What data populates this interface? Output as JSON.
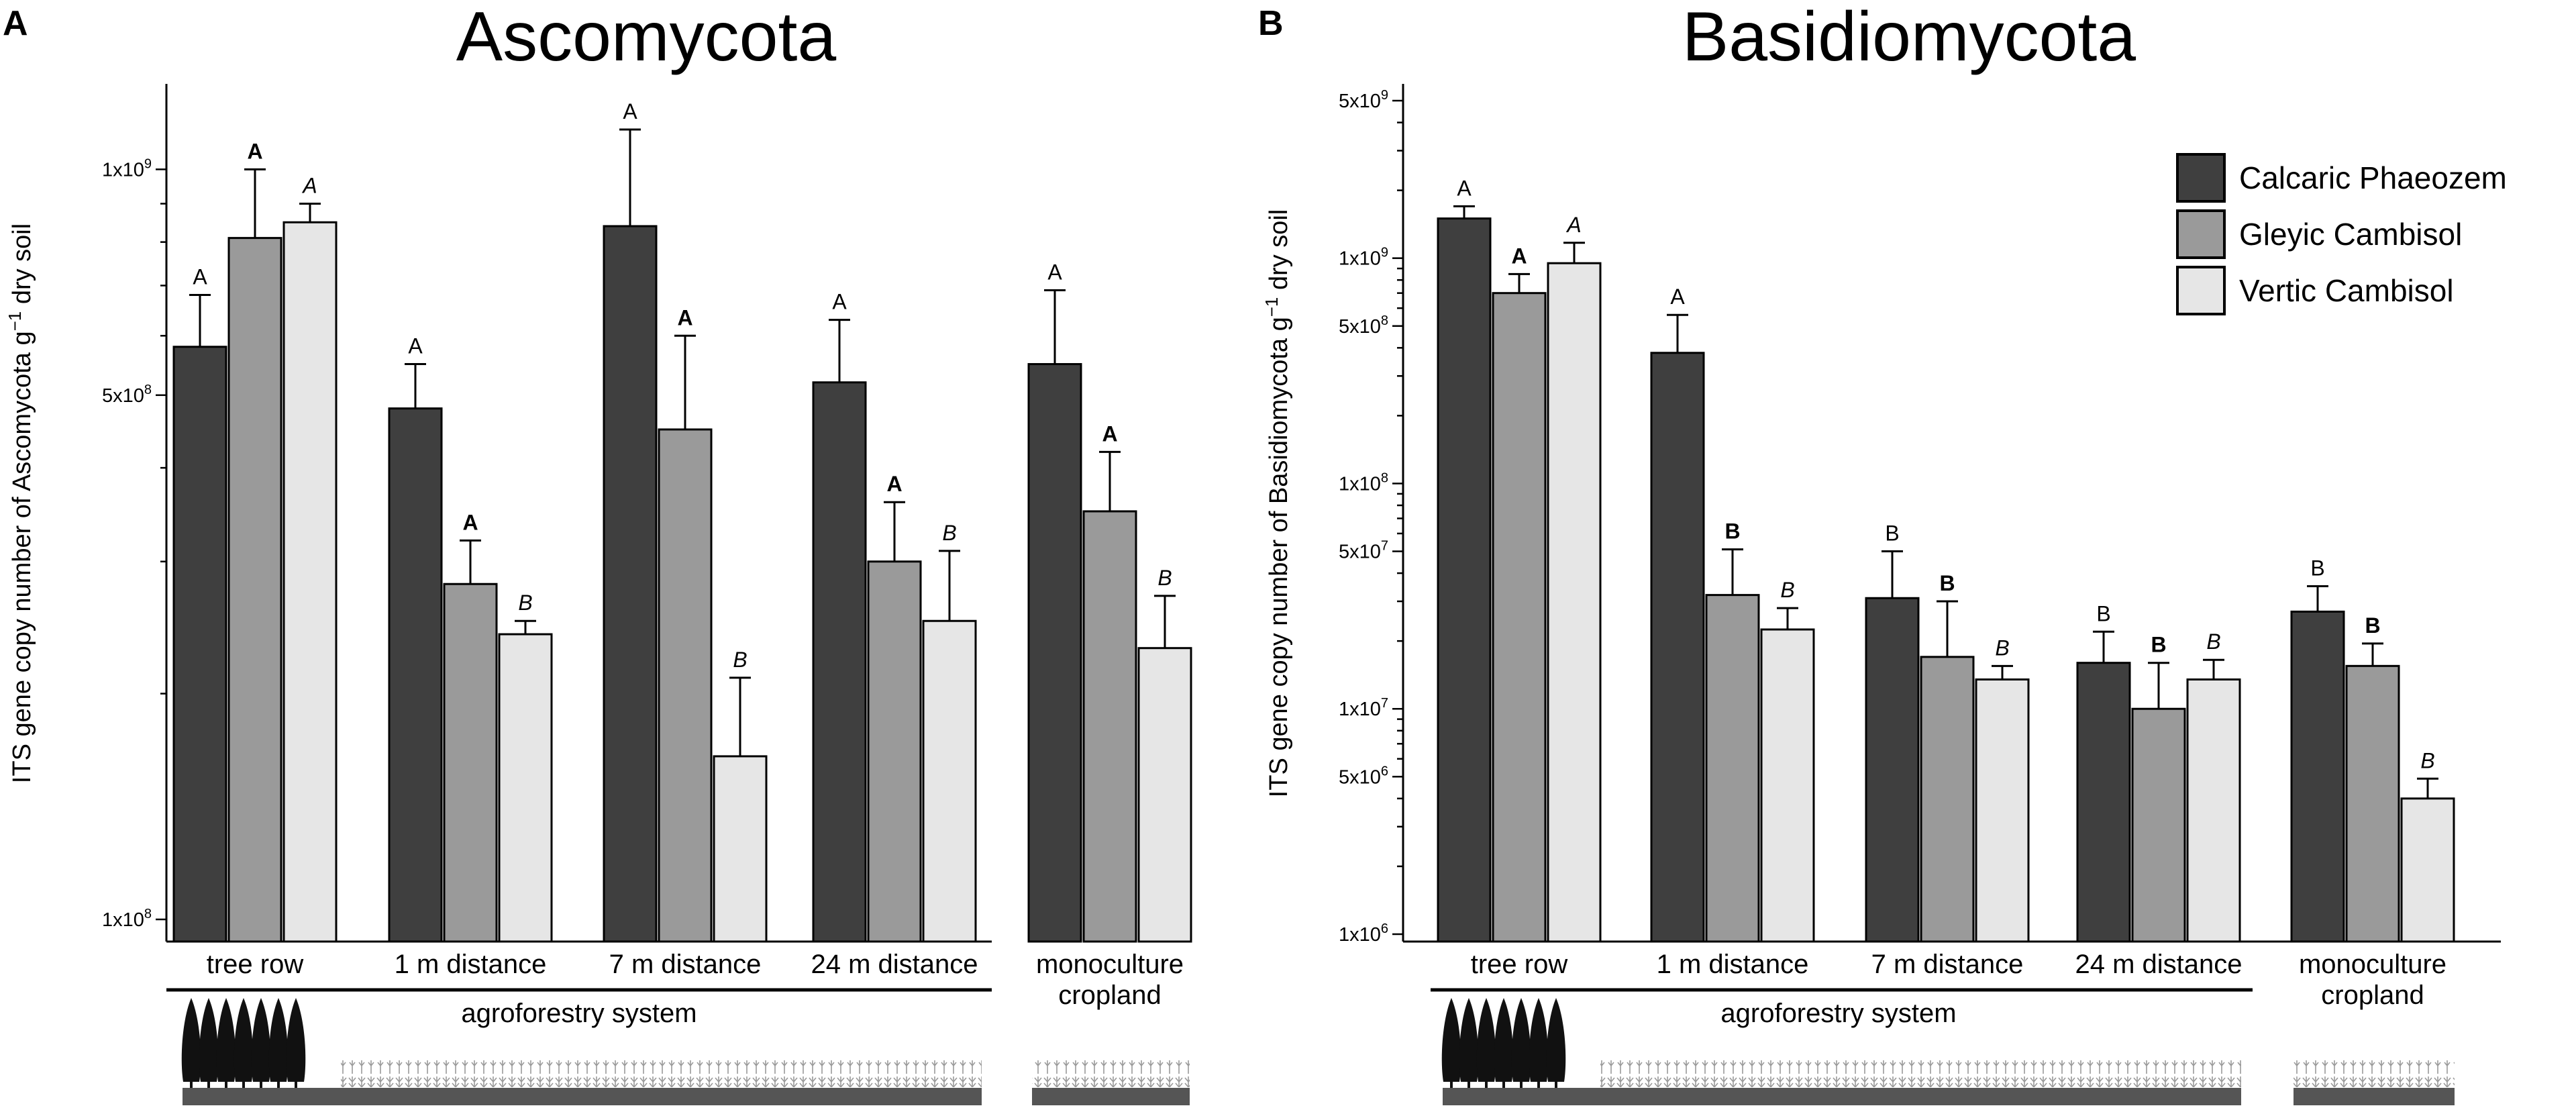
{
  "colors": {
    "Calcaric Phaeozem": "#3f3f3f",
    "Gleyic Cambisol": "#9a9a9a",
    "Vertic Cambisol": "#e6e6e6"
  },
  "chart_data": [
    {
      "panel": "A",
      "title": "Ascomycota",
      "type": "bar",
      "yscale": "log",
      "ylim": [
        100000000,
        1300000000
      ],
      "ylabel_parts": [
        "ITS gene copy number of Ascomycota g",
        "−1",
        " dry soil"
      ],
      "yticks": [
        {
          "value": 100000000,
          "label": "1x10",
          "exp": "8"
        },
        {
          "value": 500000000,
          "label": "5x10",
          "exp": "8"
        },
        {
          "value": 1000000000,
          "label": "1x10",
          "exp": "9"
        }
      ],
      "categories": [
        [
          "tree row"
        ],
        [
          "1 m distance"
        ],
        [
          "7 m distance"
        ],
        [
          "24 m distance"
        ],
        [
          "monoculture",
          "cropland"
        ]
      ],
      "group_label": "agroforestry system",
      "series": [
        {
          "name": "Calcaric Phaeozem",
          "values": [
            580000000,
            480000000,
            840000000,
            520000000,
            550000000
          ],
          "errors": [
            680000000,
            550000000,
            1130000000,
            630000000,
            690000000
          ],
          "letters": [
            "A",
            "A",
            "A",
            "A",
            "A"
          ],
          "style": "normal"
        },
        {
          "name": "Gleyic Cambisol",
          "values": [
            810000000,
            280000000,
            450000000,
            300000000,
            350000000
          ],
          "errors": [
            1000000000,
            320000000,
            600000000,
            360000000,
            420000000
          ],
          "letters": [
            "A",
            "A",
            "A",
            "A",
            "A"
          ],
          "style": "bold"
        },
        {
          "name": "Vertic Cambisol",
          "values": [
            850000000,
            240000000,
            165000000,
            250000000,
            230000000
          ],
          "errors": [
            900000000,
            250000000,
            210000000,
            310000000,
            270000000
          ],
          "letters": [
            "A",
            "B",
            "B",
            "B",
            "B"
          ],
          "style": "italic"
        }
      ]
    },
    {
      "panel": "B",
      "title": "Basidiomycota",
      "type": "bar",
      "yscale": "log",
      "ylim": [
        1000000,
        6000000000
      ],
      "ylabel_parts": [
        "ITS gene copy number of Basidiomycota g",
        "−1",
        " dry soil"
      ],
      "yticks": [
        {
          "value": 1000000,
          "label": "1x10",
          "exp": "6"
        },
        {
          "value": 5000000,
          "label": "5x10",
          "exp": "6"
        },
        {
          "value": 10000000,
          "label": "1x10",
          "exp": "7"
        },
        {
          "value": 50000000,
          "label": "5x10",
          "exp": "7"
        },
        {
          "value": 100000000,
          "label": "1x10",
          "exp": "8"
        },
        {
          "value": 500000000,
          "label": "5x10",
          "exp": "8"
        },
        {
          "value": 1000000000,
          "label": "1x10",
          "exp": "9"
        },
        {
          "value": 5000000000,
          "label": "5x10",
          "exp": "9"
        }
      ],
      "categories": [
        [
          "tree row"
        ],
        [
          "1 m distance"
        ],
        [
          "7 m distance"
        ],
        [
          "24 m distance"
        ],
        [
          "monoculture",
          "cropland"
        ]
      ],
      "group_label": "agroforestry system",
      "series": [
        {
          "name": "Calcaric Phaeozem",
          "values": [
            1500000000,
            380000000,
            31000000,
            16000000,
            27000000
          ],
          "errors": [
            1700000000,
            560000000,
            50000000,
            22000000,
            35000000
          ],
          "letters": [
            "A",
            "A",
            "B",
            "B",
            "B"
          ],
          "style": "normal"
        },
        {
          "name": "Gleyic Cambisol",
          "values": [
            700000000,
            32000000,
            17000000,
            10000000,
            15500000
          ],
          "errors": [
            850000000,
            51000000,
            30000000,
            16000000,
            19500000
          ],
          "letters": [
            "A",
            "B",
            "B",
            "B",
            "B"
          ],
          "style": "bold"
        },
        {
          "name": "Vertic Cambisol",
          "values": [
            950000000,
            22500000,
            13500000,
            13500000,
            4000000
          ],
          "errors": [
            1170000000,
            28000000,
            15500000,
            16500000,
            4900000
          ],
          "letters": [
            "A",
            "B",
            "B",
            "B",
            "B"
          ],
          "style": "italic"
        }
      ],
      "legend": [
        "Calcaric Phaeozem",
        "Gleyic Cambisol",
        "Vertic Cambisol"
      ]
    }
  ]
}
